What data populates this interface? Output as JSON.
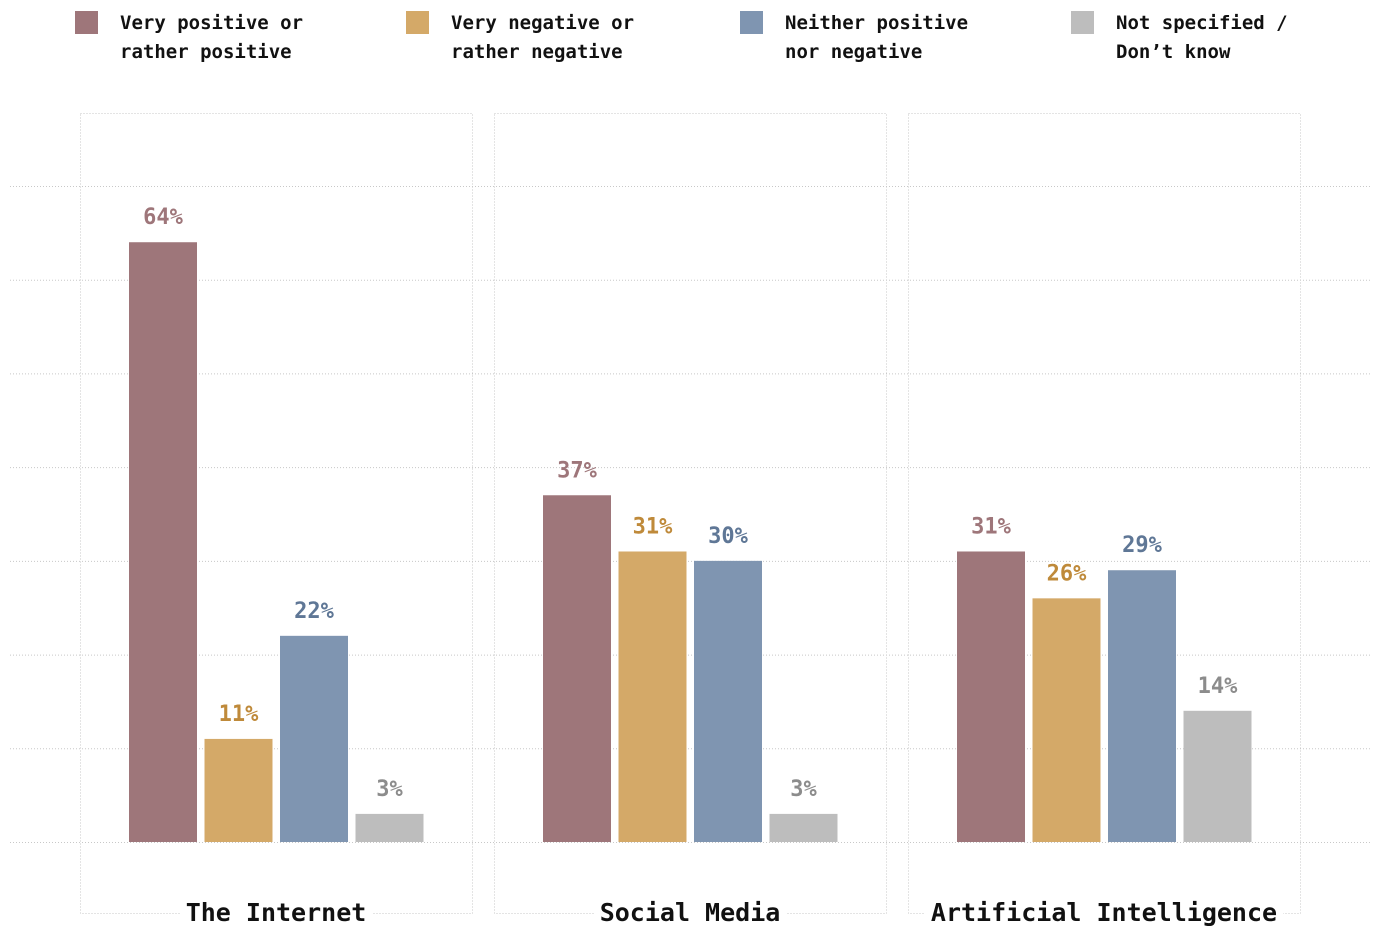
{
  "legend": [
    {
      "label": "Very positive or\nrather positive",
      "color": "#9e767a"
    },
    {
      "label": "Very negative or\nrather negative",
      "color": "#d4a968"
    },
    {
      "label": "Neither positive\nnor negative",
      "color": "#7f95b1"
    },
    {
      "label": "Not specified /\nDon’t know",
      "color": "#bdbdbd"
    }
  ],
  "label_colors": [
    "#9e767a",
    "#bf8a3a",
    "#5f7796",
    "#8c8c8c"
  ],
  "chart_data": {
    "type": "bar",
    "categories": [
      "The Internet",
      "Social Media",
      "Artificial Intelligence"
    ],
    "series": [
      {
        "name": "Very positive or rather positive",
        "values": [
          64,
          37,
          31
        ],
        "labels": [
          "64%",
          "37%",
          "31%"
        ]
      },
      {
        "name": "Very negative or rather negative",
        "values": [
          11,
          31,
          26
        ],
        "labels": [
          "11%",
          "31%",
          "26%"
        ]
      },
      {
        "name": "Neither positive nor negative",
        "values": [
          22,
          30,
          29
        ],
        "labels": [
          "22%",
          "30%",
          "29%"
        ]
      },
      {
        "name": "Not specified / Don’t know",
        "values": [
          3,
          3,
          14
        ],
        "labels": [
          "3%",
          "3%",
          "14%"
        ]
      }
    ],
    "ylim": [
      0,
      70
    ],
    "grid": true,
    "legend_position": "top",
    "title": "",
    "xlabel": "",
    "ylabel": ""
  }
}
